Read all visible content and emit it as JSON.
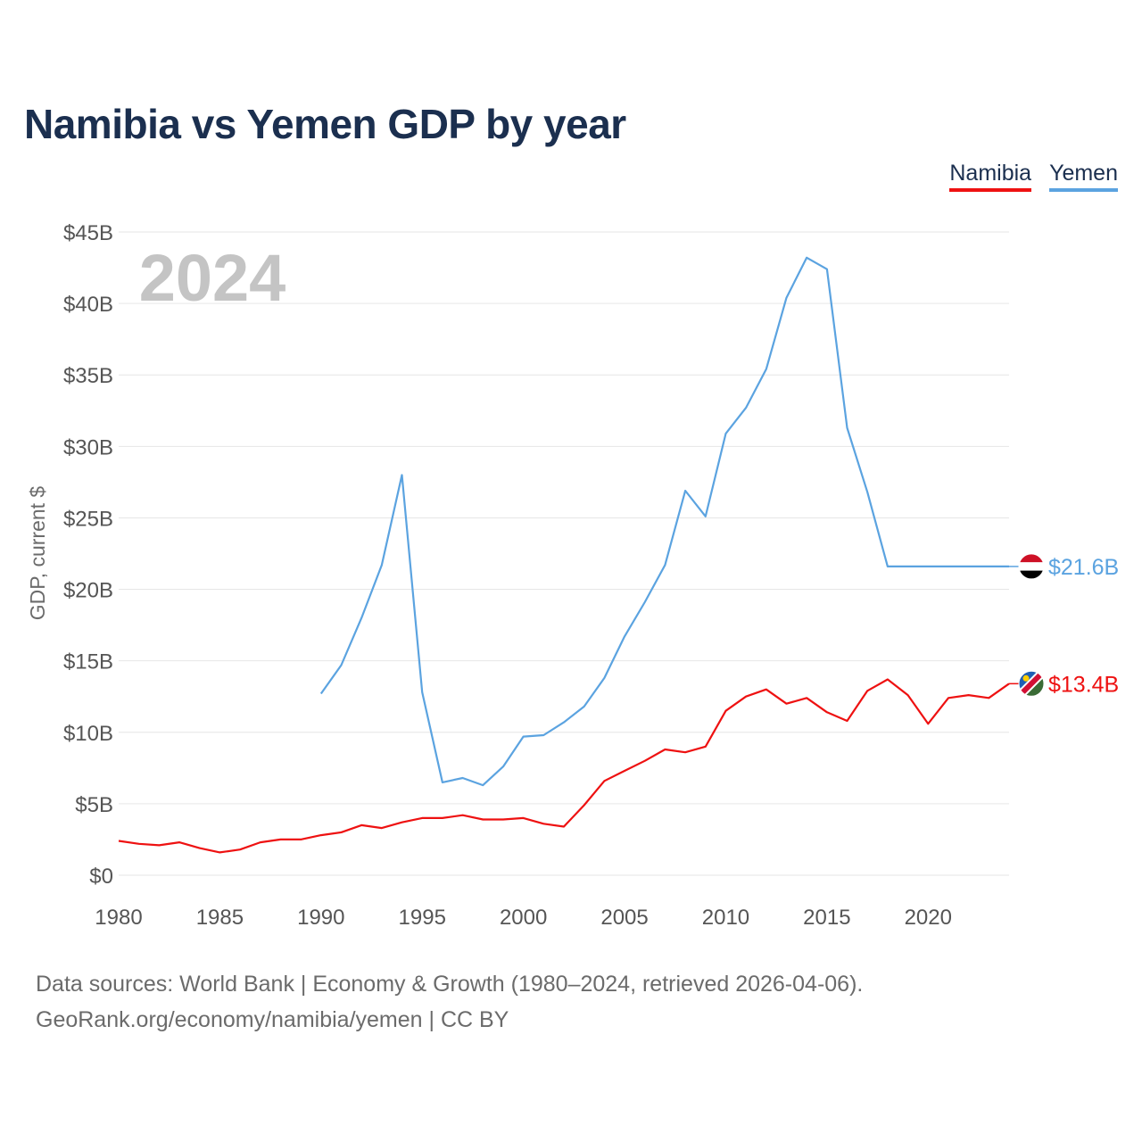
{
  "title": "Namibia vs Yemen GDP by year",
  "legend": [
    {
      "name": "Namibia",
      "color": "#ee1111"
    },
    {
      "name": "Yemen",
      "color": "#5ba3e0"
    }
  ],
  "year_label": "2024",
  "chart_data": {
    "type": "line",
    "title": "Namibia vs Yemen GDP by year",
    "xlabel": "",
    "ylabel": "GDP, current $",
    "xlim": [
      1980,
      2024
    ],
    "ylim": [
      0,
      45
    ],
    "x_ticks": [
      1980,
      1985,
      1990,
      1995,
      2000,
      2005,
      2010,
      2015,
      2020
    ],
    "x_tick_labels": [
      "1980",
      "1985",
      "1990",
      "1995",
      "2000",
      "2005",
      "2010",
      "2015",
      "2020"
    ],
    "y_ticks": [
      0,
      5,
      10,
      15,
      20,
      25,
      30,
      35,
      40,
      45
    ],
    "y_tick_labels": [
      "$0",
      "$5B",
      "$10B",
      "$15B",
      "$20B",
      "$25B",
      "$30B",
      "$35B",
      "$40B",
      "$45B"
    ],
    "grid": true,
    "series": [
      {
        "name": "Yemen",
        "color": "#5ba3e0",
        "end_label": "$21.6B",
        "x": [
          1990,
          1991,
          1992,
          1993,
          1994,
          1995,
          1996,
          1997,
          1998,
          1999,
          2000,
          2001,
          2002,
          2003,
          2004,
          2005,
          2006,
          2007,
          2008,
          2009,
          2010,
          2011,
          2012,
          2013,
          2014,
          2015,
          2016,
          2017,
          2018,
          2019,
          2020,
          2021,
          2022,
          2023,
          2024
        ],
        "values": [
          12.7,
          14.7,
          18.0,
          21.7,
          28.0,
          12.8,
          6.5,
          6.8,
          6.3,
          7.6,
          9.7,
          9.8,
          10.7,
          11.8,
          13.8,
          16.7,
          19.1,
          21.7,
          26.9,
          25.1,
          30.9,
          32.7,
          35.4,
          40.4,
          43.2,
          42.4,
          31.3,
          26.8,
          21.6,
          21.6,
          21.6,
          21.6,
          21.6,
          21.6,
          21.6
        ]
      },
      {
        "name": "Namibia",
        "color": "#ee1111",
        "end_label": "$13.4B",
        "x": [
          1980,
          1981,
          1982,
          1983,
          1984,
          1985,
          1986,
          1987,
          1988,
          1989,
          1990,
          1991,
          1992,
          1993,
          1994,
          1995,
          1996,
          1997,
          1998,
          1999,
          2000,
          2001,
          2002,
          2003,
          2004,
          2005,
          2006,
          2007,
          2008,
          2009,
          2010,
          2011,
          2012,
          2013,
          2014,
          2015,
          2016,
          2017,
          2018,
          2019,
          2020,
          2021,
          2022,
          2023,
          2024
        ],
        "values": [
          2.4,
          2.2,
          2.1,
          2.3,
          1.9,
          1.6,
          1.8,
          2.3,
          2.5,
          2.5,
          2.8,
          3.0,
          3.5,
          3.3,
          3.7,
          4.0,
          4.0,
          4.2,
          3.9,
          3.9,
          4.0,
          3.6,
          3.4,
          4.9,
          6.6,
          7.3,
          8.0,
          8.8,
          8.6,
          9.0,
          11.5,
          12.5,
          13.0,
          12.0,
          12.4,
          11.4,
          10.8,
          12.9,
          13.7,
          12.6,
          10.6,
          12.4,
          12.6,
          12.4,
          13.4
        ]
      }
    ]
  },
  "footer": {
    "line1": "Data sources: World Bank | Economy & Growth (1980–2024, retrieved 2026-04-06).",
    "line2": "GeoRank.org/economy/namibia/yemen | CC BY"
  }
}
